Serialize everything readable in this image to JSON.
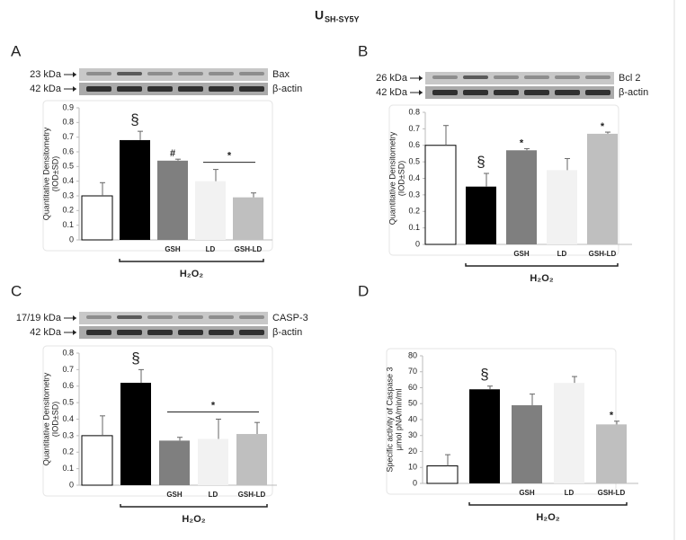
{
  "title_main": "U",
  "title_sub": "SH-SY5Y",
  "chart_data": [
    {
      "type": "bar",
      "panel": "A",
      "blot": [
        {
          "size": "23 kDa",
          "protein": "Bax"
        },
        {
          "size": "42 kDa",
          "protein": "β-actin"
        }
      ],
      "ylabel": [
        "Quantitative Densitometry",
        "(IOD±SD)"
      ],
      "categories": [
        null,
        null,
        "GSH",
        "LD",
        "GSH-LD"
      ],
      "values": [
        0.3,
        0.68,
        0.54,
        0.4,
        0.29
      ],
      "errors": [
        0.09,
        0.06,
        0.01,
        0.08,
        0.03
      ],
      "colors": [
        "#ffffff",
        "#000000",
        "#7f7f7f",
        "#f2f2f2",
        "#bfbfbf"
      ],
      "ylim": [
        0,
        0.9
      ],
      "yticks": [
        0,
        0.1,
        0.2,
        0.3,
        0.4,
        0.5,
        0.6,
        0.7,
        0.8,
        0.9
      ],
      "markers": [
        null,
        "§",
        "#",
        null,
        null
      ],
      "bracket": {
        "label": "*",
        "span": [
          "LD",
          "GSH-LD"
        ]
      },
      "group_label": "H₂O₂"
    },
    {
      "type": "bar",
      "panel": "B",
      "blot": [
        {
          "size": "26 kDa",
          "protein": "Bcl 2"
        },
        {
          "size": "42 kDa",
          "protein": "β-actin"
        }
      ],
      "ylabel": [
        "Quantitative Densitometry",
        "(IOD±SD)"
      ],
      "categories": [
        null,
        null,
        "GSH",
        "LD",
        "GSH-LD"
      ],
      "values": [
        0.6,
        0.35,
        0.57,
        0.45,
        0.67
      ],
      "errors": [
        0.12,
        0.08,
        0.01,
        0.07,
        0.01
      ],
      "colors": [
        "#ffffff",
        "#000000",
        "#7f7f7f",
        "#f2f2f2",
        "#bfbfbf"
      ],
      "ylim": [
        0,
        0.8
      ],
      "yticks": [
        0,
        0.1,
        0.2,
        0.3,
        0.4,
        0.5,
        0.6,
        0.7,
        0.8
      ],
      "markers": [
        null,
        "§",
        "*",
        null,
        "*"
      ],
      "group_label": "H₂O₂"
    },
    {
      "type": "bar",
      "panel": "C",
      "blot": [
        {
          "size": "17/19 kDa",
          "protein": "CASP-3"
        },
        {
          "size": "42 kDa",
          "protein": "β-actin"
        }
      ],
      "ylabel": [
        "Quantitative Densitometry",
        "(IOD±SD)"
      ],
      "categories": [
        null,
        null,
        "GSH",
        "LD",
        "GSH-LD"
      ],
      "values": [
        0.3,
        0.62,
        0.27,
        0.28,
        0.31
      ],
      "errors": [
        0.12,
        0.08,
        0.02,
        0.12,
        0.07
      ],
      "colors": [
        "#ffffff",
        "#000000",
        "#7f7f7f",
        "#f2f2f2",
        "#bfbfbf"
      ],
      "ylim": [
        0,
        0.8
      ],
      "yticks": [
        0,
        0.1,
        0.2,
        0.3,
        0.4,
        0.5,
        0.6,
        0.7,
        0.8
      ],
      "markers": [
        null,
        "§",
        null,
        null,
        null
      ],
      "bracket": {
        "label": "*",
        "span": [
          "GSH",
          "GSH-LD"
        ]
      },
      "group_label": "H₂O₂"
    },
    {
      "type": "bar",
      "panel": "D",
      "ylabel": [
        "Specific activity of Caspase 3",
        "μmol pNA/min/ml"
      ],
      "categories": [
        null,
        null,
        "GSH",
        "LD",
        "GSH-LD"
      ],
      "values": [
        11,
        59,
        49,
        63,
        37
      ],
      "errors": [
        7,
        2,
        7,
        4,
        2
      ],
      "colors": [
        "#ffffff",
        "#000000",
        "#7f7f7f",
        "#f2f2f2",
        "#bfbfbf"
      ],
      "ylim": [
        0,
        80
      ],
      "yticks": [
        0,
        10,
        20,
        30,
        40,
        50,
        60,
        70,
        80
      ],
      "markers": [
        null,
        "§",
        null,
        null,
        "*"
      ],
      "group_label": "H₂O₂"
    }
  ]
}
